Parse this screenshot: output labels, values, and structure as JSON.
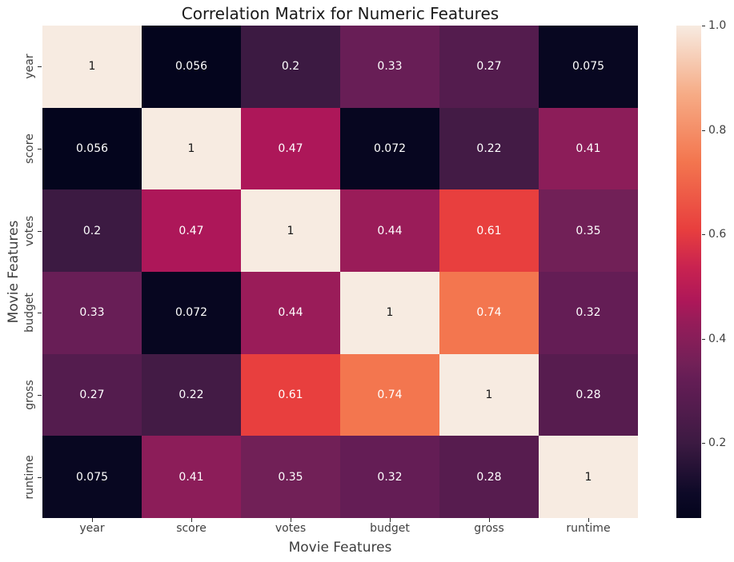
{
  "figure": {
    "background_color": "#ffffff",
    "title_color": "#1a1a1a",
    "axis_label_color": "#3d3d3d",
    "tick_label_color": "#404040",
    "tick_mark_color": "#2b2b2b"
  },
  "chart_data": {
    "type": "heatmap",
    "title": "Correlation Matrix for Numeric Features",
    "xlabel": "Movie Features",
    "ylabel": "Movie Features",
    "x_categories": [
      "year",
      "score",
      "votes",
      "budget",
      "gross",
      "runtime"
    ],
    "y_categories": [
      "year",
      "score",
      "votes",
      "budget",
      "gross",
      "runtime"
    ],
    "matrix": [
      [
        1,
        0.056,
        0.2,
        0.33,
        0.27,
        0.075
      ],
      [
        0.056,
        1,
        0.47,
        0.072,
        0.22,
        0.41
      ],
      [
        0.2,
        0.47,
        1,
        0.44,
        0.61,
        0.35
      ],
      [
        0.33,
        0.072,
        0.44,
        1,
        0.74,
        0.32
      ],
      [
        0.27,
        0.22,
        0.61,
        0.74,
        1,
        0.28
      ],
      [
        0.075,
        0.41,
        0.35,
        0.32,
        0.28,
        1
      ]
    ],
    "vmin": 0.056,
    "vmax": 1.0,
    "grid": false,
    "legend_position": "right-colorbar",
    "colorbar_ticks": [
      {
        "value": 0.2,
        "label": "0.2"
      },
      {
        "value": 0.4,
        "label": "0.4"
      },
      {
        "value": 0.6,
        "label": "0.6"
      },
      {
        "value": 0.8,
        "label": "0.8"
      },
      {
        "value": 1.0,
        "label": "1.0"
      }
    ],
    "colormap": {
      "name": "rocket",
      "stops": [
        [
          0.0,
          "#04051D"
        ],
        [
          0.05,
          "#0D0927"
        ],
        [
          0.1525,
          "#3C1A42"
        ],
        [
          0.2267,
          "#541C4E"
        ],
        [
          0.2797,
          "#641D55"
        ],
        [
          0.3114,
          "#712057"
        ],
        [
          0.375,
          "#8C1D59"
        ],
        [
          0.4068,
          "#9A1C59"
        ],
        [
          0.4385,
          "#AD1759"
        ],
        [
          0.51,
          "#C92350"
        ],
        [
          0.5869,
          "#E83F3E"
        ],
        [
          0.7246,
          "#F3764F"
        ],
        [
          0.86,
          "#F6AB85"
        ],
        [
          1.0,
          "#F7EBE1"
        ]
      ]
    },
    "annotation_text_dark": "#151515",
    "annotation_text_light": "#ffffff"
  }
}
